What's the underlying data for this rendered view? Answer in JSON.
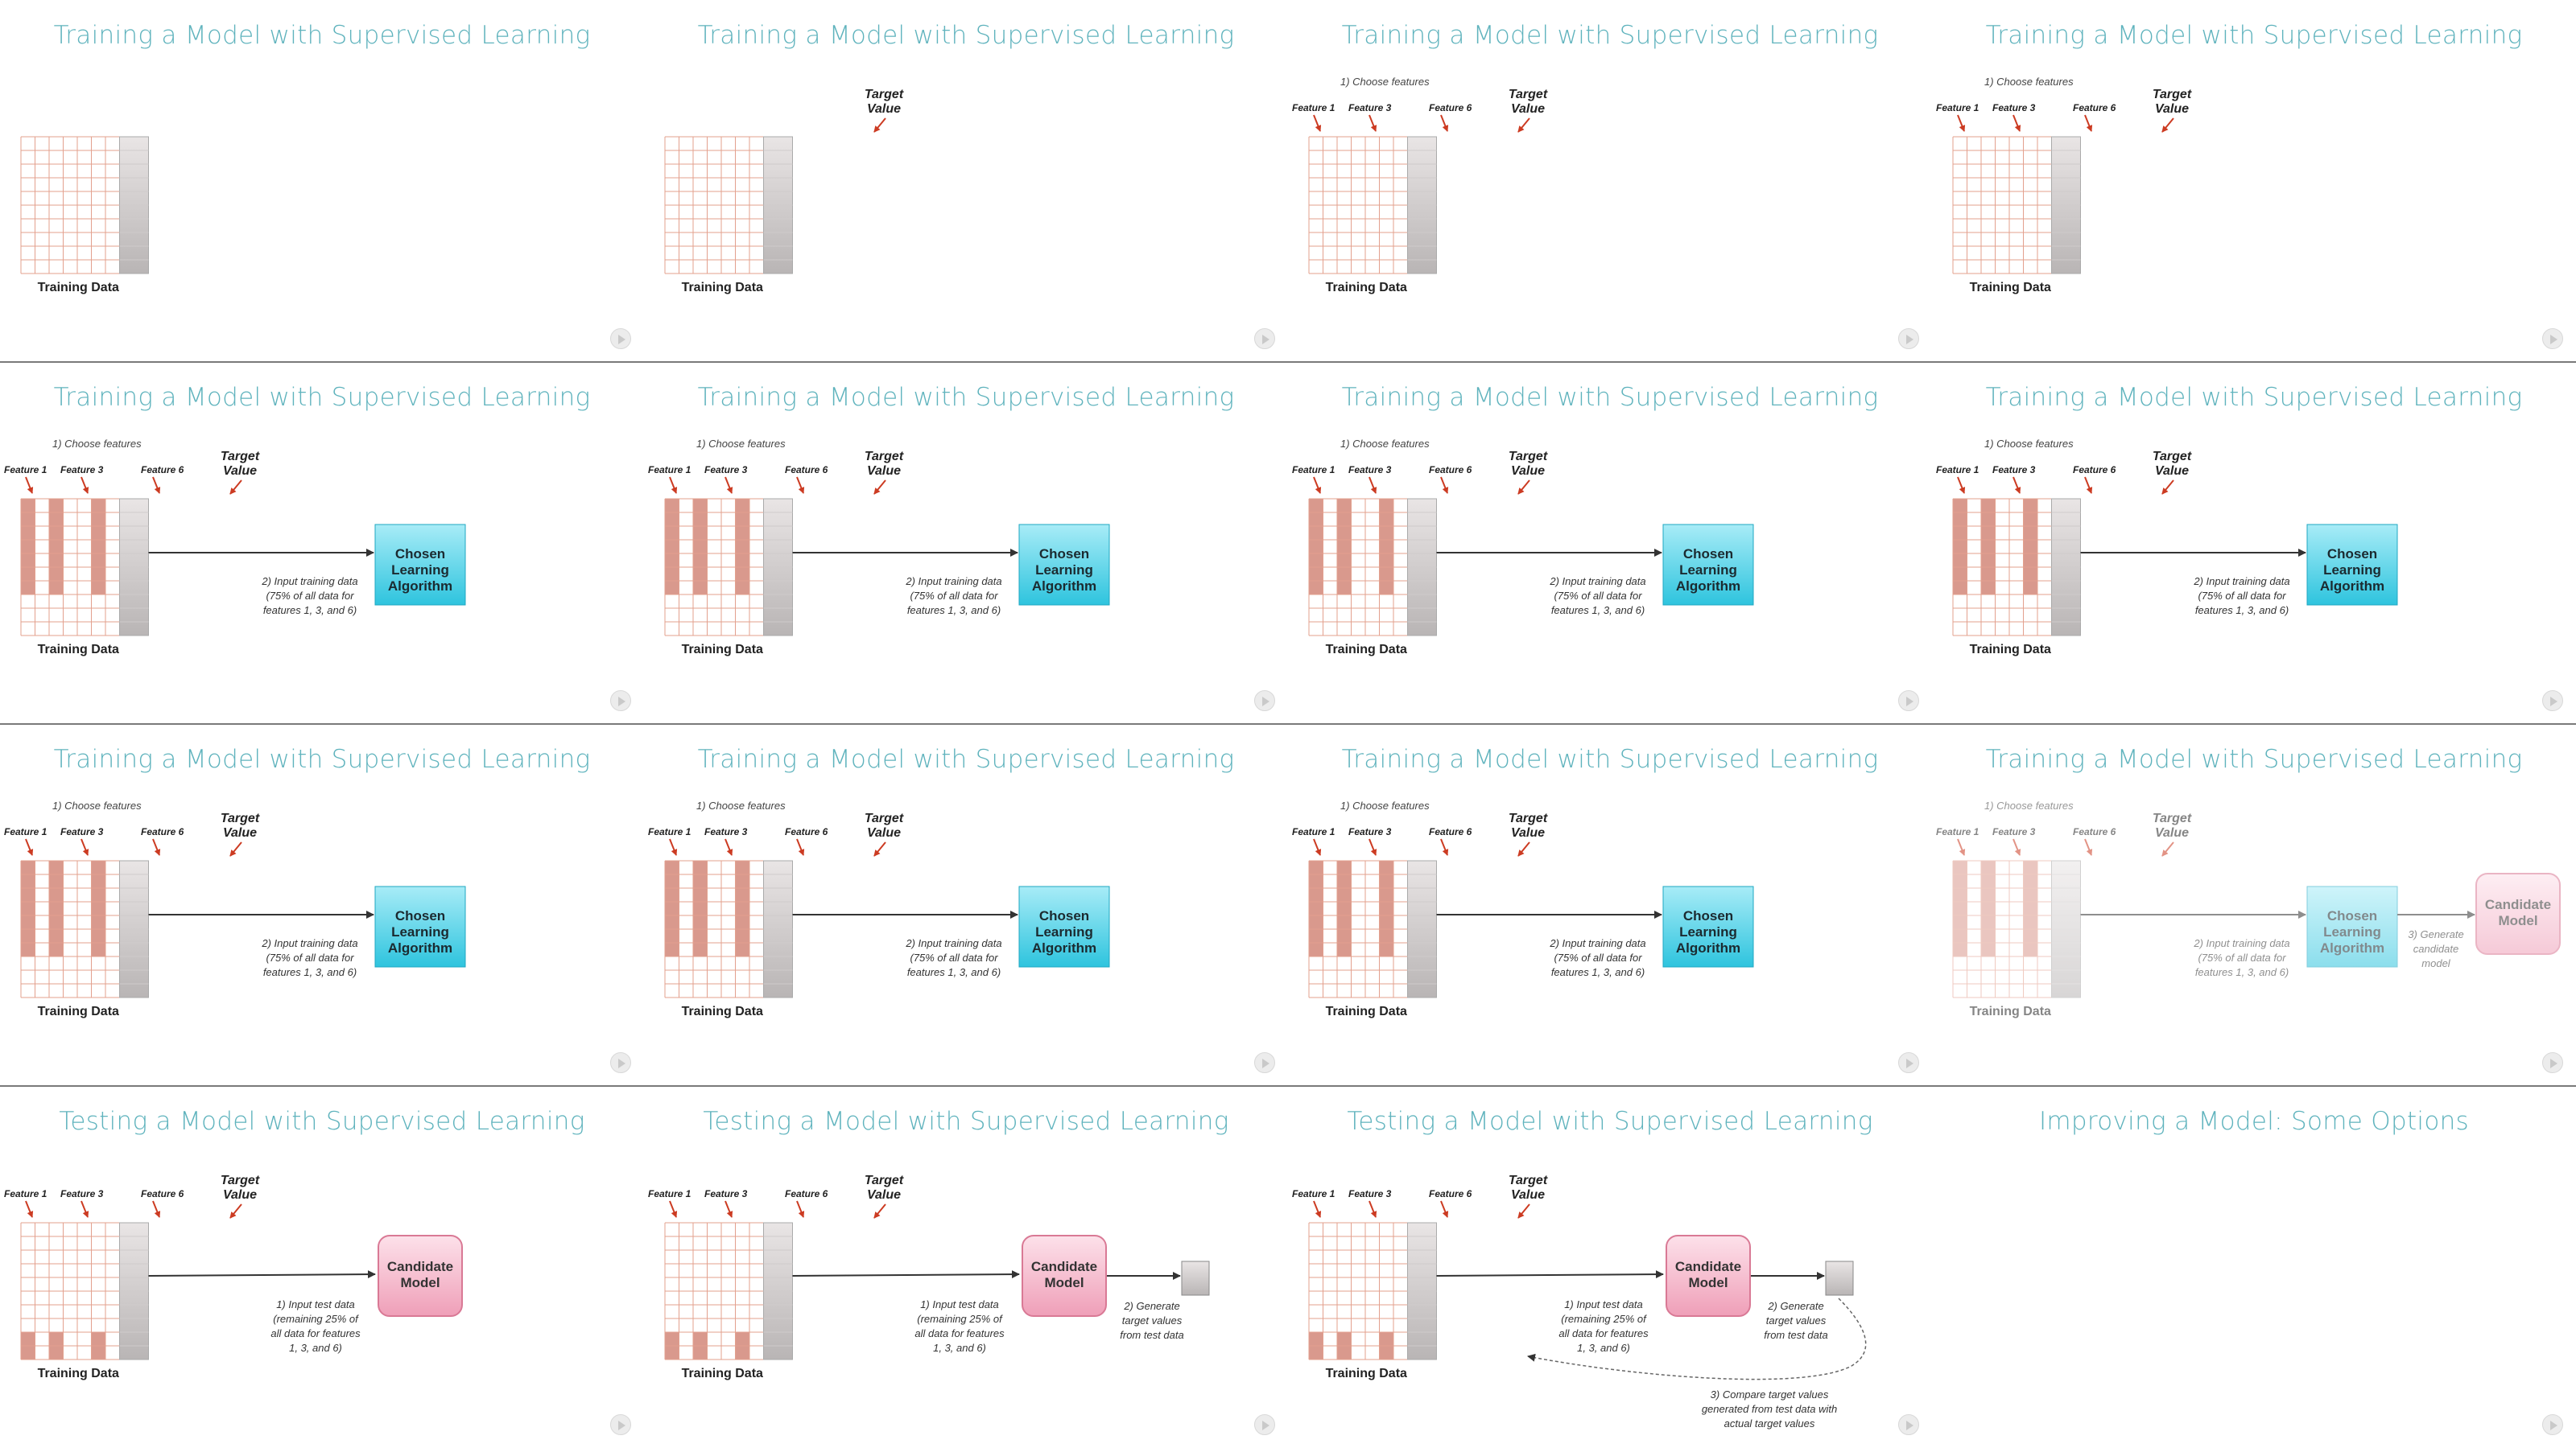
{
  "slides": [
    {
      "title": "Training a Model with Supervised Learning",
      "features": false,
      "target": false,
      "highlight": "none",
      "algorithm": false,
      "candidate": false,
      "step3": false,
      "faded": false
    },
    {
      "title": "Training a Model with Supervised Learning",
      "features": false,
      "target": true,
      "highlight": "none",
      "algorithm": false,
      "candidate": false,
      "step3": false,
      "faded": false
    },
    {
      "title": "Training a Model with Supervised Learning",
      "features": true,
      "target": true,
      "highlight": "none",
      "algorithm": false,
      "candidate": false,
      "step3": false,
      "faded": false
    },
    {
      "title": "Training a Model with Supervised Learning",
      "features": true,
      "target": true,
      "highlight": "none",
      "algorithm": false,
      "candidate": false,
      "step3": false,
      "faded": false
    },
    {
      "title": "Training a Model with Supervised Learning",
      "features": true,
      "target": true,
      "highlight": "train",
      "algorithm": true,
      "candidate": false,
      "step3": false,
      "faded": false
    },
    {
      "title": "Training a Model with Supervised Learning",
      "features": true,
      "target": true,
      "highlight": "train",
      "algorithm": true,
      "candidate": false,
      "step3": false,
      "faded": false
    },
    {
      "title": "Training a Model with Supervised Learning",
      "features": true,
      "target": true,
      "highlight": "train",
      "algorithm": true,
      "candidate": false,
      "step3": false,
      "faded": false
    },
    {
      "title": "Training a Model with Supervised Learning",
      "features": true,
      "target": true,
      "highlight": "train",
      "algorithm": true,
      "candidate": false,
      "step3": false,
      "faded": false
    },
    {
      "title": "Training a Model with Supervised Learning",
      "features": true,
      "target": true,
      "highlight": "train",
      "algorithm": true,
      "candidate": false,
      "step3": false,
      "faded": false
    },
    {
      "title": "Training a Model with Supervised Learning",
      "features": true,
      "target": true,
      "highlight": "train",
      "algorithm": true,
      "candidate": false,
      "step3": false,
      "faded": false
    },
    {
      "title": "Training a Model with Supervised Learning",
      "features": true,
      "target": true,
      "highlight": "train",
      "algorithm": true,
      "candidate": false,
      "step3": false,
      "faded": false
    },
    {
      "title": "Training a Model with Supervised Learning",
      "features": true,
      "target": true,
      "highlight": "train",
      "algorithm": true,
      "candidate": true,
      "step3": true,
      "faded": true
    },
    {
      "title": "Testing a Model with Supervised Learning",
      "testing": 1
    },
    {
      "title": "Testing a Model with Supervised Learning",
      "testing": 2
    },
    {
      "title": "Testing a Model with Supervised Learning",
      "testing": 3
    },
    {
      "title": "Improving a Model: Some Options",
      "empty": true
    }
  ],
  "labels": {
    "training_data": "Training Data",
    "feature1": "Feature 1",
    "feature3": "Feature 3",
    "feature6": "Feature 6",
    "target1": "Target",
    "target2": "Value",
    "choose": "1) Choose features",
    "input_train": [
      "2) Input training data",
      "(75% of all data for",
      "features 1, 3, and 6)"
    ],
    "algo": [
      "Chosen",
      "Learning",
      "Algorithm"
    ],
    "candidate": [
      "Candidate",
      "Model"
    ],
    "generate_candidate": [
      "3) Generate",
      "candidate",
      "model"
    ],
    "input_test": [
      "1) Input test data",
      "(remaining 25% of",
      "all data for features",
      "1, 3, and 6)"
    ],
    "generate_targets": [
      "2) Generate",
      "target values",
      "from test data"
    ],
    "compare": [
      "3) Compare target values",
      "generated from test data with",
      "actual target values"
    ]
  },
  "colors": {
    "title": "#5fb3bd",
    "grid": "#e3a08e",
    "highlight": "#d9998d",
    "arrow_red": "#cc3b22",
    "algo_top": "#a8ecf7",
    "algo_bottom": "#2ec4de",
    "candidate_top": "#fde1ea",
    "candidate_bottom": "#ef9fb8"
  }
}
